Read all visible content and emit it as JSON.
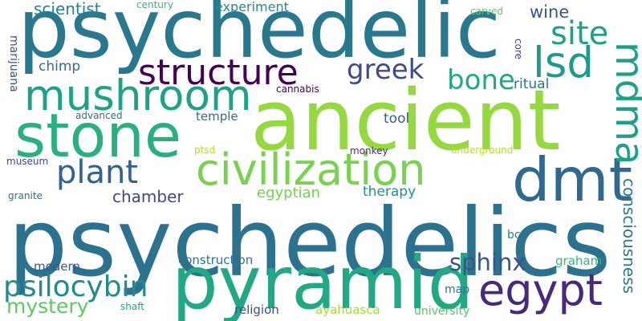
{
  "words": [
    {
      "text": "psychedelics",
      "color": "#2c728e"
    },
    {
      "text": "psychedelic",
      "color": "#2a788e"
    },
    {
      "text": "ancient",
      "color": "#95d840"
    },
    {
      "text": "pyramid",
      "color": "#22a884"
    },
    {
      "text": "stone",
      "color": "#2ab07f"
    },
    {
      "text": "mushroom",
      "color": "#1fa188"
    },
    {
      "text": "civilization",
      "color": "#7ad151"
    },
    {
      "text": "dmt",
      "color": "#31688e"
    },
    {
      "text": "egypt",
      "color": "#482878"
    },
    {
      "text": "mdma",
      "color": "#1f9e89"
    },
    {
      "text": "lsd",
      "color": "#1f9a8a"
    },
    {
      "text": "structure",
      "color": "#440154"
    },
    {
      "text": "plant",
      "color": "#33638d"
    },
    {
      "text": "psilocybin",
      "color": "#238a8d"
    },
    {
      "text": "site",
      "color": "#1fa187"
    },
    {
      "text": "bone",
      "color": "#22a785"
    },
    {
      "text": "greek",
      "color": "#3e4a89"
    },
    {
      "text": "sphinx",
      "color": "#3b528b"
    },
    {
      "text": "mystery",
      "color": "#5ec962"
    },
    {
      "text": "consciousness",
      "color": "#29798e"
    },
    {
      "text": "chamber",
      "color": "#3f4788"
    },
    {
      "text": "egyptian",
      "color": "#75d054"
    },
    {
      "text": "scientist",
      "color": "#25838e"
    },
    {
      "text": "wine",
      "color": "#3a548c"
    },
    {
      "text": "therapy",
      "color": "#21918c"
    },
    {
      "text": "experiment",
      "color": "#238a8d"
    },
    {
      "text": "chimp",
      "color": "#2e6d8e"
    },
    {
      "text": "ritual",
      "color": "#2a768e"
    },
    {
      "text": "tool",
      "color": "#365d8d"
    },
    {
      "text": "temple",
      "color": "#2f6c8e"
    },
    {
      "text": "modern",
      "color": "#375b8d"
    },
    {
      "text": "construction",
      "color": "#2d718e"
    },
    {
      "text": "graham",
      "color": "#35b779"
    },
    {
      "text": "religion",
      "color": "#3d4d8a"
    },
    {
      "text": "ayahuasca",
      "color": "#a5db36"
    },
    {
      "text": "university",
      "color": "#54c568"
    },
    {
      "text": "map",
      "color": "#2a788e"
    },
    {
      "text": "bc",
      "color": "#26828e"
    },
    {
      "text": "marijuana",
      "color": "#3b528b"
    },
    {
      "text": "century",
      "color": "#35b779"
    },
    {
      "text": "carved",
      "color": "#5ec962"
    },
    {
      "text": "core",
      "color": "#414487"
    },
    {
      "text": "cannabis",
      "color": "#440154"
    },
    {
      "text": "advanced",
      "color": "#2c728e"
    },
    {
      "text": "ptsd",
      "color": "#b5de2b"
    },
    {
      "text": "underground",
      "color": "#b5de2b"
    },
    {
      "text": "monkey",
      "color": "#472d7b"
    },
    {
      "text": "museum",
      "color": "#404688"
    },
    {
      "text": "granite",
      "color": "#2c728e"
    },
    {
      "text": "shaft",
      "color": "#22a884"
    }
  ]
}
